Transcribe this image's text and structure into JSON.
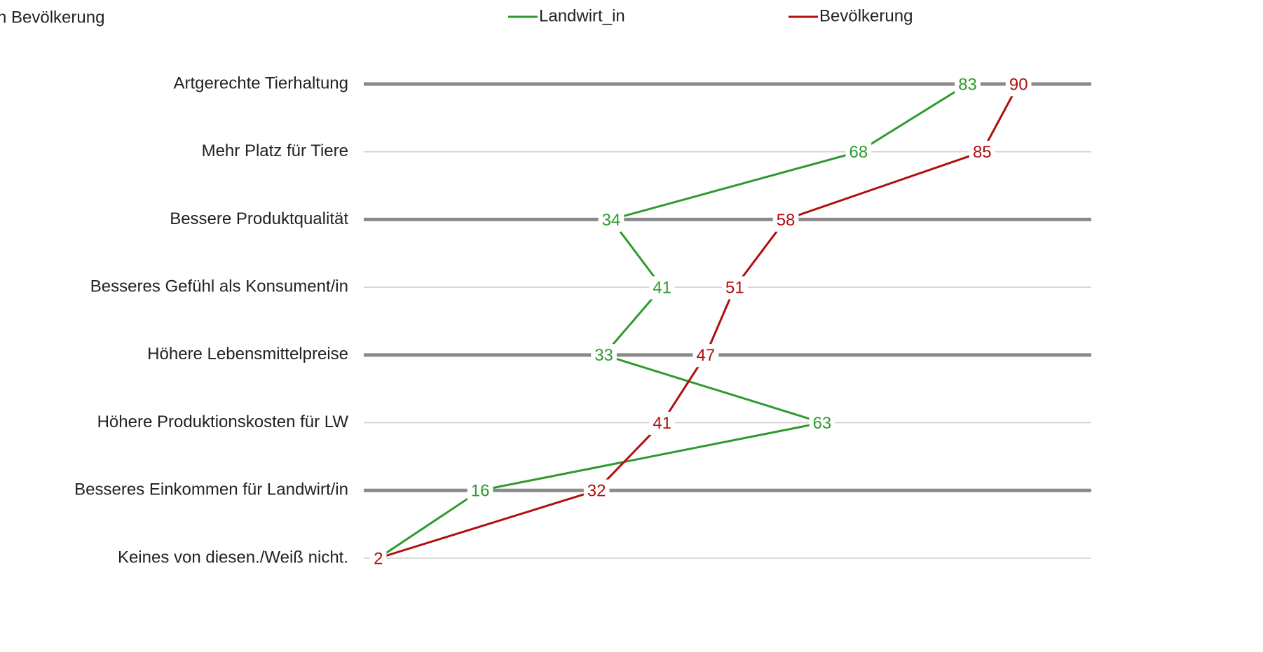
{
  "chart_data": {
    "type": "line",
    "title": "n Bevölkerung",
    "categories": [
      "Artgerechte Tierhaltung",
      "Mehr Platz für Tiere",
      "Bessere Produktqualität",
      "Besseres Gefühl als Konsument/in",
      "Höhere Lebensmittelpreise",
      "Höhere Produktionskosten für LW",
      "Besseres Einkommen für Landwirt/in",
      "Keines von diesen./Weiß nicht."
    ],
    "series": [
      {
        "name": "Landwirt_in",
        "color": "#2e9a2e",
        "values": [
          83,
          68,
          34,
          41,
          33,
          63,
          16,
          2
        ]
      },
      {
        "name": "Bevölkerung",
        "color": "#b00f0f",
        "values": [
          90,
          85,
          58,
          51,
          47,
          41,
          32,
          2
        ]
      }
    ],
    "xlim": [
      0,
      100
    ],
    "legend": "top"
  }
}
